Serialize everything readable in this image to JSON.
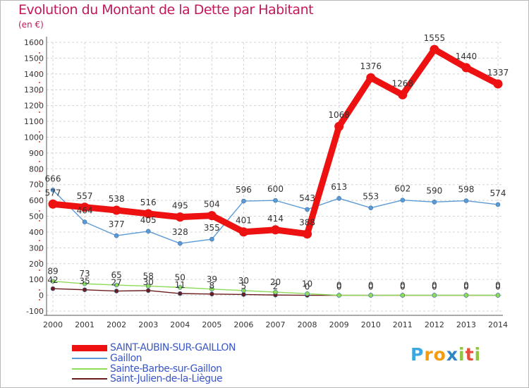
{
  "title": "Evolution du Montant de la Dette par Habitant",
  "subtitle": "(en €)",
  "logo_letters": [
    "P",
    "r",
    "o",
    "x",
    "i",
    "t",
    "i"
  ],
  "logo_colors": [
    "#3da8e0",
    "#f39c12",
    "#f39c12",
    "#2e86c1",
    "#8dc63f",
    "#e74c3c",
    "#8dc63f"
  ],
  "chart_data": {
    "type": "line",
    "x": [
      2000,
      2001,
      2002,
      2003,
      2004,
      2005,
      2006,
      2007,
      2008,
      2009,
      2010,
      2011,
      2012,
      2013,
      2014
    ],
    "ylim": [
      -100,
      1600
    ],
    "yticks": [
      -100,
      0,
      100,
      200,
      300,
      400,
      500,
      600,
      700,
      800,
      900,
      1000,
      1100,
      1200,
      1300,
      1400,
      1500,
      1600
    ],
    "grid": true,
    "legend_position": "bottom",
    "series": [
      {
        "name": "SAINT-AUBIN-SUR-GAILLON",
        "color": "#ee1111",
        "emphasis": true,
        "values": [
          577,
          557,
          538,
          516,
          495,
          504,
          401,
          414,
          388,
          1068,
          1376,
          1268,
          1555,
          1440,
          1337
        ]
      },
      {
        "name": "Gaillon",
        "color": "#5b9bd5",
        "values": [
          666,
          464,
          377,
          405,
          328,
          355,
          596,
          600,
          543,
          613,
          553,
          602,
          590,
          598,
          574
        ]
      },
      {
        "name": "Sainte-Barbe-sur-Gaillon",
        "color": "#8fdc5a",
        "values": [
          89,
          73,
          65,
          58,
          50,
          39,
          30,
          20,
          10,
          0,
          0,
          0,
          0,
          0,
          0
        ]
      },
      {
        "name": "Saint-Julien-de-la-Liègue",
        "color": "#6b1c1c",
        "values": [
          42,
          35,
          27,
          30,
          11,
          8,
          5,
          2,
          0,
          0,
          0,
          0,
          0,
          0,
          0
        ]
      }
    ],
    "labels": [
      [
        "577",
        "557",
        "538",
        "516",
        "495",
        "504",
        "401",
        "414",
        "388",
        "1068",
        "1376",
        "1268",
        "1555",
        "1440",
        "1337"
      ],
      [
        "666",
        "464",
        "377",
        "405",
        "328",
        "355",
        "596",
        "600",
        "543",
        "613",
        "553",
        "602",
        "590",
        "598",
        "574"
      ],
      [
        "89",
        "73",
        "65",
        "58",
        "50",
        "39",
        "30",
        "20",
        "10",
        "0",
        "0",
        "0",
        "0",
        "0",
        "0"
      ],
      [
        "42",
        "35",
        "27",
        "30",
        "11",
        "8",
        "5",
        "2",
        "0",
        "0",
        "0",
        "0",
        "0",
        "0",
        "0"
      ]
    ]
  }
}
